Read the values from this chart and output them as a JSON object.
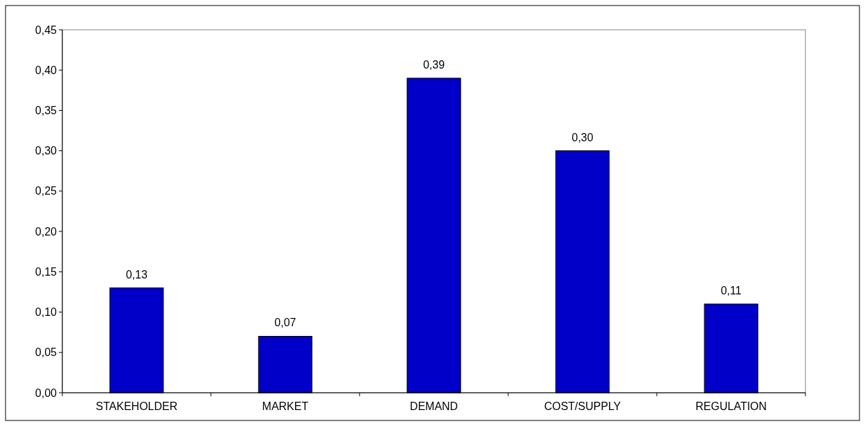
{
  "chart_data": {
    "type": "bar",
    "categories": [
      "STAKEHOLDER",
      "MARKET",
      "DEMAND",
      "COST/SUPPLY",
      "REGULATION"
    ],
    "values": [
      0.13,
      0.07,
      0.39,
      0.3,
      0.11
    ],
    "value_labels": [
      "0,13",
      "0,07",
      "0,39",
      "0,30",
      "0,11"
    ],
    "color": "#0000c8",
    "ylim": [
      0,
      0.45
    ],
    "yticks": [
      {
        "value": 0,
        "label": "0,00"
      },
      {
        "value": 0.05,
        "label": "0,05"
      },
      {
        "value": 0.1,
        "label": "0,10"
      },
      {
        "value": 0.15,
        "label": "0,15"
      },
      {
        "value": 0.2,
        "label": "0,20"
      },
      {
        "value": 0.25,
        "label": "0,25"
      },
      {
        "value": 0.3,
        "label": "0,30"
      },
      {
        "value": 0.35,
        "label": "0,35"
      },
      {
        "value": 0.4,
        "label": "0,40"
      },
      {
        "value": 0.45,
        "label": "0,45"
      }
    ],
    "grid": false
  }
}
